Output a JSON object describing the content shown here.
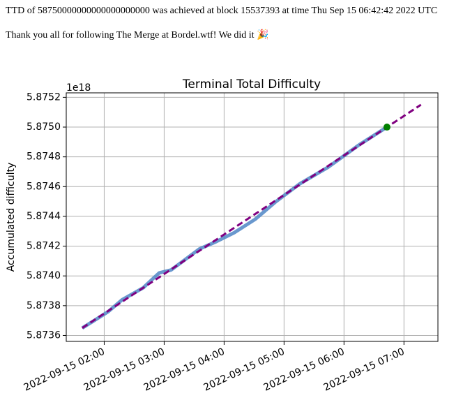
{
  "header": {
    "line1": "TTD of 58750000000000000000000 was achieved at block 15537393 at time Thu Sep 15 06:42:42 2022 UTC",
    "line2": "Thank you all for following The Merge at Bordel.wtf! We did it 🎉"
  },
  "chart_data": {
    "type": "line",
    "title": "Terminal Total Difficulty",
    "y_label": "Accumulated difficulty",
    "y_offset_label": "1e18",
    "grid": true,
    "xlim": [
      "2022-09-15 01:22",
      "2022-09-15 07:34"
    ],
    "xticks": [
      "2022-09-15 02:00",
      "2022-09-15 03:00",
      "2022-09-15 04:00",
      "2022-09-15 05:00",
      "2022-09-15 06:00",
      "2022-09-15 07:00"
    ],
    "ylim": [
      5.87356,
      5.87523
    ],
    "yticks": [
      5.8736,
      5.8738,
      {
        "value": 5.874,
        "label": "5.8740"
      },
      5.8742,
      5.8744,
      5.8746,
      5.8748,
      {
        "value": 5.875,
        "label": "5.8750"
      },
      5.8752
    ],
    "series": [
      {
        "color": "#4f86c6",
        "style": "solid",
        "x": [
          "2022-09-15 01:38",
          "2022-09-15 01:50",
          "2022-09-15 02:04",
          "2022-09-15 02:18",
          "2022-09-15 02:39",
          "2022-09-15 02:55",
          "2022-09-15 03:07",
          "2022-09-15 03:35",
          "2022-09-15 03:52",
          "2022-09-15 04:10",
          "2022-09-15 04:31",
          "2022-09-15 04:52",
          "2022-09-15 05:16",
          "2022-09-15 05:44",
          "2022-09-15 06:15",
          "2022-09-15 06:43"
        ],
        "values": [
          5.87365,
          5.8737,
          5.87376,
          5.87384,
          5.87392,
          5.87402,
          5.87404,
          5.87418,
          5.87423,
          5.87429,
          5.87438,
          5.8745,
          5.87462,
          5.87473,
          5.87488,
          5.875
        ]
      },
      {
        "color": "#800080",
        "style": "dashed",
        "x": [
          "2022-09-15 01:38",
          "2022-09-15 07:17"
        ],
        "values": [
          5.87365,
          5.87515
        ]
      },
      {
        "color": "#008000",
        "style": "marker",
        "x": [
          "2022-09-15 06:43"
        ],
        "values": [
          5.875
        ]
      }
    ]
  }
}
